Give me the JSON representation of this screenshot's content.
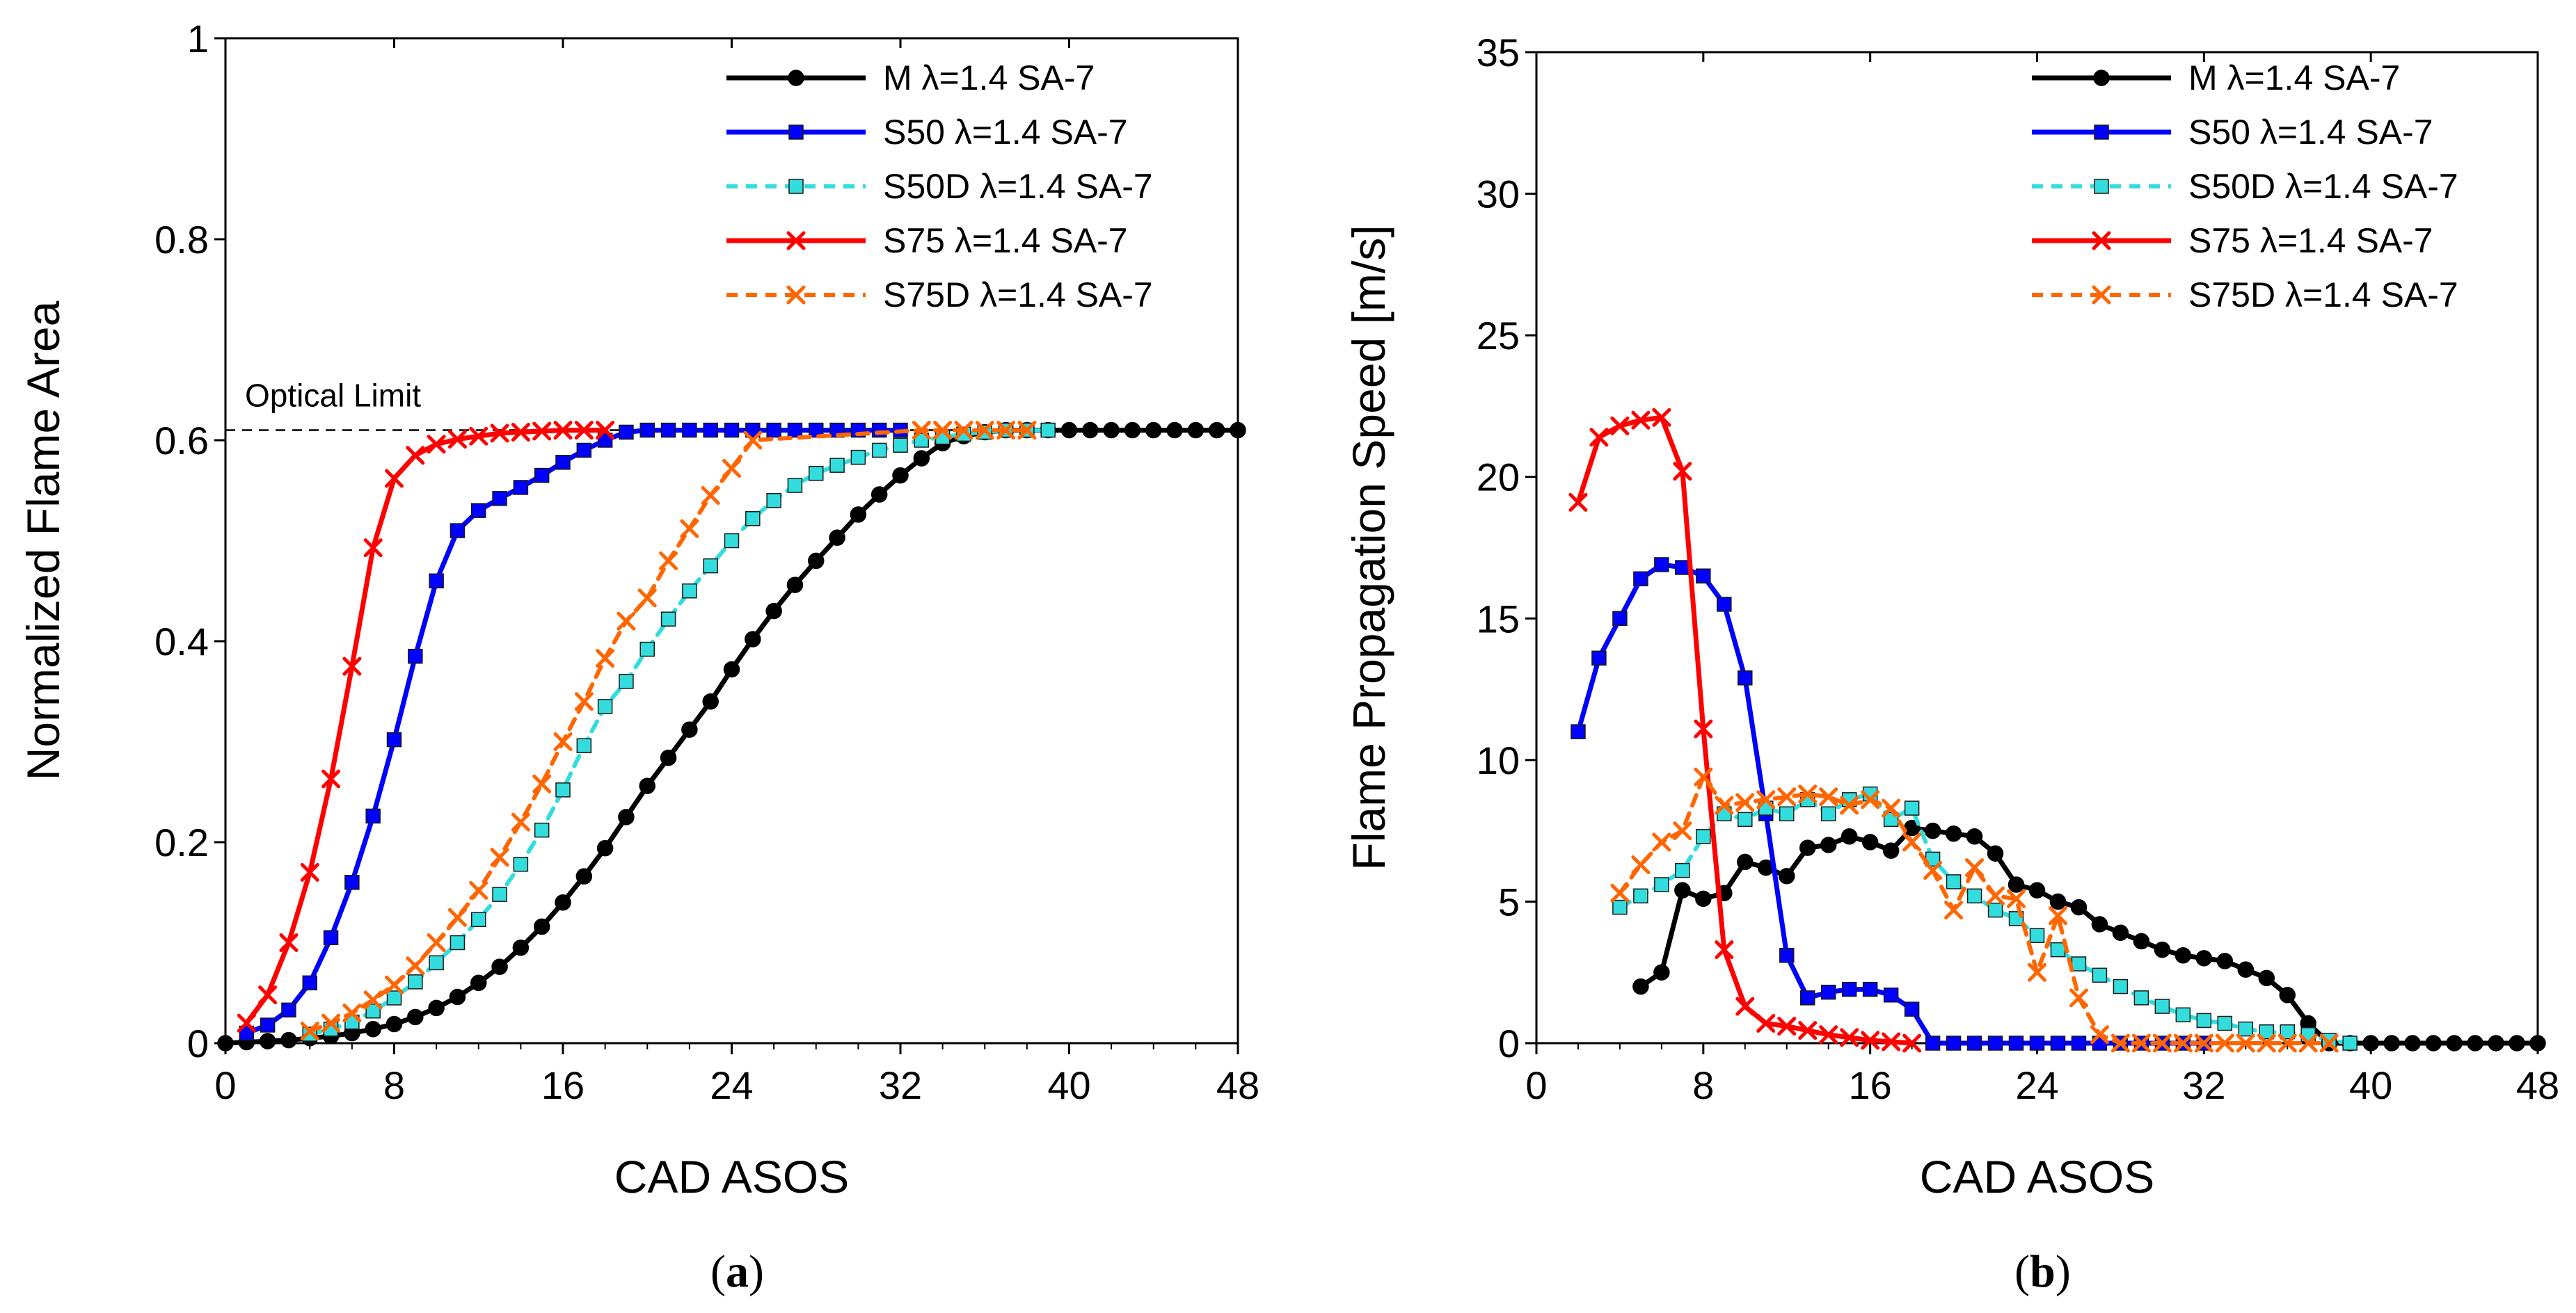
{
  "colors": {
    "M": "#000000",
    "S50": "#0000ff",
    "S50D": "#33dddd",
    "S75": "#ff0000",
    "S75D": "#ff6600"
  },
  "chart_data": [
    {
      "type": "line",
      "id": "a",
      "caption_prefix": "(",
      "caption_letter": "a",
      "caption_suffix": ")",
      "xlabel": "CAD ASOS",
      "ylabel": "Normalized Flame Area",
      "xlim": [
        0,
        48
      ],
      "ylim": [
        0,
        1
      ],
      "xticks": [
        0,
        8,
        16,
        24,
        32,
        40,
        48
      ],
      "yticks": [
        0,
        0.2,
        0.4,
        0.6,
        0.8,
        1
      ],
      "ytick_labels": [
        "0",
        "0.2",
        "0.4",
        "0.6",
        "0.8",
        "1"
      ],
      "reference_line": {
        "y": 0.61,
        "label": "Optical Limit"
      },
      "series": [
        {
          "key": "M",
          "name": "M λ=1.4 SA-7",
          "marker": "circle",
          "dashed": false,
          "x": [
            0,
            1,
            2,
            3,
            4,
            5,
            6,
            7,
            8,
            9,
            10,
            11,
            12,
            13,
            14,
            15,
            16,
            17,
            18,
            19,
            20,
            21,
            22,
            23,
            24,
            25,
            26,
            27,
            28,
            29,
            30,
            31,
            32,
            33,
            34,
            35,
            36,
            37,
            38,
            39,
            40,
            41,
            42,
            43,
            44,
            45,
            46,
            47,
            48
          ],
          "y": [
            0,
            0.001,
            0.002,
            0.003,
            0.005,
            0.007,
            0.01,
            0.014,
            0.019,
            0.026,
            0.035,
            0.046,
            0.06,
            0.076,
            0.095,
            0.116,
            0.14,
            0.166,
            0.194,
            0.225,
            0.256,
            0.284,
            0.312,
            0.34,
            0.372,
            0.402,
            0.43,
            0.456,
            0.48,
            0.503,
            0.526,
            0.546,
            0.565,
            0.582,
            0.597,
            0.604,
            0.608,
            0.61,
            0.61,
            0.61,
            0.61,
            0.61,
            0.61,
            0.61,
            0.61,
            0.61,
            0.61,
            0.61,
            0.61
          ]
        },
        {
          "key": "S50",
          "name": "S50 λ=1.4 SA-7",
          "marker": "square",
          "dashed": false,
          "x": [
            1,
            2,
            3,
            4,
            5,
            6,
            7,
            8,
            9,
            10,
            11,
            12,
            13,
            14,
            15,
            16,
            17,
            18,
            19,
            20,
            21,
            22,
            23,
            24,
            25,
            26,
            27,
            28,
            29,
            30,
            31,
            32
          ],
          "y": [
            0.01,
            0.018,
            0.033,
            0.06,
            0.105,
            0.16,
            0.226,
            0.302,
            0.385,
            0.46,
            0.51,
            0.53,
            0.542,
            0.553,
            0.565,
            0.578,
            0.59,
            0.6,
            0.608,
            0.61,
            0.61,
            0.61,
            0.61,
            0.61,
            0.61,
            0.61,
            0.61,
            0.61,
            0.61,
            0.61,
            0.61,
            0.61
          ]
        },
        {
          "key": "S50D",
          "name": "S50D λ=1.4 SA-7",
          "marker": "square",
          "dashed": true,
          "x": [
            4,
            5,
            6,
            7,
            8,
            9,
            10,
            11,
            12,
            13,
            14,
            15,
            16,
            17,
            18,
            19,
            20,
            21,
            22,
            23,
            24,
            25,
            26,
            27,
            28,
            29,
            30,
            31,
            32,
            33,
            34,
            35,
            36,
            37,
            38,
            39
          ],
          "y": [
            0.009,
            0.014,
            0.021,
            0.032,
            0.045,
            0.061,
            0.08,
            0.1,
            0.123,
            0.148,
            0.178,
            0.212,
            0.252,
            0.296,
            0.335,
            0.36,
            0.392,
            0.422,
            0.45,
            0.475,
            0.5,
            0.522,
            0.54,
            0.555,
            0.567,
            0.575,
            0.583,
            0.59,
            0.595,
            0.6,
            0.603,
            0.606,
            0.608,
            0.61,
            0.61,
            0.61
          ]
        },
        {
          "key": "S75",
          "name": "S75 λ=1.4 SA-7",
          "marker": "x",
          "dashed": false,
          "x": [
            1,
            2,
            3,
            4,
            5,
            6,
            7,
            8,
            9,
            10,
            11,
            12,
            13,
            14,
            15,
            16,
            17,
            18
          ],
          "y": [
            0.02,
            0.048,
            0.1,
            0.17,
            0.263,
            0.375,
            0.493,
            0.562,
            0.585,
            0.596,
            0.601,
            0.604,
            0.607,
            0.608,
            0.609,
            0.61,
            0.61,
            0.61
          ]
        },
        {
          "key": "S75D",
          "name": "S75D λ=1.4 SA-7",
          "marker": "x",
          "dashed": true,
          "x": [
            4,
            5,
            6,
            7,
            8,
            9,
            10,
            11,
            12,
            13,
            14,
            15,
            16,
            17,
            18,
            19,
            20,
            21,
            22,
            23,
            24,
            25,
            33,
            34,
            35,
            36,
            37,
            38
          ],
          "y": [
            0.012,
            0.02,
            0.03,
            0.043,
            0.058,
            0.077,
            0.1,
            0.125,
            0.152,
            0.185,
            0.22,
            0.258,
            0.3,
            0.34,
            0.383,
            0.42,
            0.443,
            0.48,
            0.512,
            0.545,
            0.572,
            0.6,
            0.61,
            0.61,
            0.61,
            0.61,
            0.61,
            0.61
          ]
        }
      ]
    },
    {
      "type": "line",
      "id": "b",
      "caption_prefix": "(",
      "caption_letter": "b",
      "caption_suffix": ")",
      "xlabel": "CAD ASOS",
      "ylabel": "Flame Propagation Speed [m/s]",
      "xlim": [
        0,
        48
      ],
      "ylim": [
        0,
        35
      ],
      "xticks": [
        0,
        8,
        16,
        24,
        32,
        40,
        48
      ],
      "yticks": [
        0,
        5,
        10,
        15,
        20,
        25,
        30,
        35
      ],
      "ytick_labels": [
        "0",
        "5",
        "10",
        "15",
        "20",
        "25",
        "30",
        "35"
      ],
      "series": [
        {
          "key": "M",
          "name": "M λ=1.4 SA-7",
          "marker": "circle",
          "dashed": false,
          "x": [
            5,
            6,
            7,
            8,
            9,
            10,
            11,
            12,
            13,
            14,
            15,
            16,
            17,
            18,
            19,
            20,
            21,
            22,
            23,
            24,
            25,
            26,
            27,
            28,
            29,
            30,
            31,
            32,
            33,
            34,
            35,
            36,
            37,
            38,
            39,
            40,
            41,
            42,
            43,
            44,
            45,
            46,
            47,
            48
          ],
          "y": [
            2,
            2.5,
            5.4,
            5.1,
            5.3,
            6.4,
            6.2,
            5.9,
            6.9,
            7,
            7.3,
            7.1,
            6.8,
            7.6,
            7.5,
            7.4,
            7.3,
            6.7,
            5.6,
            5.4,
            5,
            4.8,
            4.2,
            3.9,
            3.6,
            3.3,
            3.1,
            3,
            2.9,
            2.6,
            2.3,
            1.7,
            0.7,
            0,
            0,
            0,
            0,
            0,
            0,
            0,
            0,
            0,
            0,
            0
          ]
        },
        {
          "key": "S50",
          "name": "S50 λ=1.4 SA-7",
          "marker": "square",
          "dashed": false,
          "x": [
            2,
            3,
            4,
            5,
            6,
            7,
            8,
            9,
            10,
            11,
            12,
            13,
            14,
            15,
            16,
            17,
            18,
            19,
            20,
            21,
            22,
            23,
            24,
            25,
            26,
            27,
            28,
            29,
            30,
            31,
            32
          ],
          "y": [
            11,
            13.6,
            15,
            16.4,
            16.9,
            16.8,
            16.5,
            15.5,
            12.9,
            8.1,
            3.1,
            1.6,
            1.8,
            1.9,
            1.9,
            1.7,
            1.2,
            0,
            0,
            0,
            0,
            0,
            0,
            0,
            0,
            0,
            0,
            0,
            0,
            0,
            0
          ]
        },
        {
          "key": "S50D",
          "name": "S50D λ=1.4 SA-7",
          "marker": "square",
          "dashed": true,
          "x": [
            4,
            5,
            6,
            7,
            8,
            9,
            10,
            11,
            12,
            13,
            14,
            15,
            16,
            17,
            18,
            19,
            20,
            21,
            22,
            23,
            24,
            25,
            26,
            27,
            28,
            29,
            30,
            31,
            32,
            33,
            34,
            35,
            36,
            37,
            38,
            39
          ],
          "y": [
            4.8,
            5.2,
            5.6,
            6.1,
            7.3,
            8.1,
            7.9,
            8.3,
            8.1,
            8.6,
            8.1,
            8.6,
            8.8,
            7.9,
            8.3,
            6.5,
            5.7,
            5.2,
            4.7,
            4.4,
            3.8,
            3.3,
            2.8,
            2.4,
            2,
            1.6,
            1.3,
            1,
            0.8,
            0.7,
            0.5,
            0.4,
            0.4,
            0.3,
            0.1,
            0
          ]
        },
        {
          "key": "S75",
          "name": "S75 λ=1.4 SA-7",
          "marker": "x",
          "dashed": false,
          "x": [
            2,
            3,
            4,
            5,
            6,
            7,
            8,
            9,
            10,
            11,
            12,
            13,
            14,
            15,
            16,
            17,
            18
          ],
          "y": [
            19.1,
            21.4,
            21.8,
            22,
            22.1,
            20.2,
            11.1,
            3.3,
            1.3,
            0.7,
            0.6,
            0.45,
            0.3,
            0.2,
            0.1,
            0.05,
            0
          ]
        },
        {
          "key": "S75D",
          "name": "S75D λ=1.4 SA-7",
          "marker": "x",
          "dashed": true,
          "x": [
            4,
            5,
            6,
            7,
            8,
            9,
            10,
            11,
            12,
            13,
            14,
            15,
            16,
            17,
            18,
            19,
            20,
            21,
            22,
            23,
            24,
            25,
            26,
            27,
            28,
            29,
            30,
            31,
            32,
            33,
            34,
            35,
            36,
            37,
            38
          ],
          "y": [
            5.3,
            6.3,
            7.1,
            7.5,
            9.4,
            8.4,
            8.5,
            8.6,
            8.7,
            8.8,
            8.7,
            8.4,
            8.6,
            8.3,
            7.1,
            6.1,
            4.7,
            6.2,
            5.2,
            5.1,
            2.5,
            4.5,
            1.6,
            0.3,
            0,
            0,
            0,
            0,
            0,
            0,
            0,
            0,
            0,
            0,
            0
          ]
        }
      ]
    }
  ]
}
